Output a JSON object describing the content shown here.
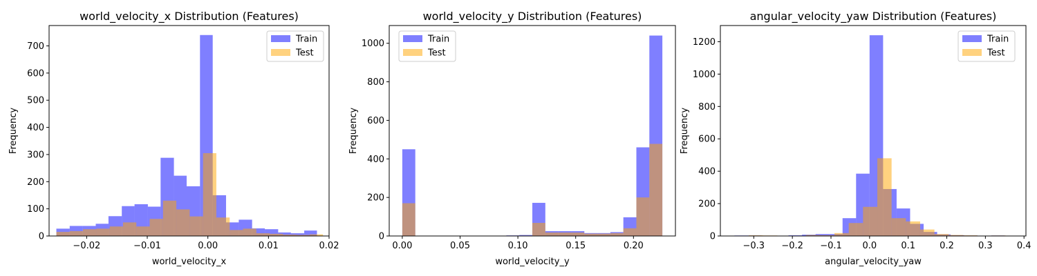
{
  "chart_data": [
    {
      "type": "histogram",
      "title": "world_velocity_x Distribution (Features)",
      "xlabel": "world_velocity_x",
      "ylabel": "Frequency",
      "xlim": [
        -0.0262,
        0.02
      ],
      "ylim": [
        0,
        775
      ],
      "xticks": [
        -0.02,
        -0.01,
        0.0,
        0.01,
        0.02
      ],
      "xtick_labels": [
        "−0.02",
        "−0.01",
        "0.00",
        "0.01",
        "0.02"
      ],
      "yticks": [
        0,
        100,
        200,
        300,
        400,
        500,
        600,
        700
      ],
      "yticks_labels": [
        "0",
        "100",
        "200",
        "300",
        "400",
        "500",
        "600",
        "700"
      ],
      "legend": "top-right",
      "series": [
        {
          "name": "Train",
          "color": "#0000ff",
          "alpha": 0.5,
          "bin_edges": [
            -0.025,
            -0.0228,
            -0.0207,
            -0.0185,
            -0.0164,
            -0.0142,
            -0.0121,
            -0.0099,
            -0.0078,
            -0.0056,
            -0.0035,
            -0.0013,
            0.0008,
            0.003,
            0.0051,
            0.0073,
            0.0094,
            0.0116,
            0.0137,
            0.0159,
            0.018
          ],
          "counts": [
            27,
            37,
            37,
            45,
            73,
            110,
            117,
            108,
            288,
            222,
            183,
            740,
            150,
            50,
            60,
            28,
            25,
            13,
            10,
            20
          ]
        },
        {
          "name": "Test",
          "color": "#ffa500",
          "alpha": 0.5,
          "bin_edges": [
            -0.025,
            -0.0228,
            -0.0206,
            -0.0184,
            -0.0162,
            -0.014,
            -0.0118,
            -0.0096,
            -0.0074,
            -0.0052,
            -0.003,
            -0.0008,
            0.0014,
            0.0036,
            0.0058,
            0.008,
            0.0102,
            0.0124,
            0.0146,
            0.0168,
            0.019
          ],
          "counts": [
            15,
            18,
            25,
            27,
            35,
            50,
            35,
            63,
            130,
            98,
            72,
            305,
            68,
            22,
            27,
            10,
            8,
            5,
            4,
            6
          ]
        }
      ]
    },
    {
      "type": "histogram",
      "title": "world_velocity_y Distribution (Features)",
      "xlabel": "world_velocity_y",
      "ylabel": "Frequency",
      "xlim": [
        -0.0113,
        0.2363
      ],
      "ylim": [
        0,
        1092
      ],
      "xticks": [
        0.0,
        0.05,
        0.1,
        0.15,
        0.2
      ],
      "xtick_labels": [
        "0.00",
        "0.05",
        "0.10",
        "0.15",
        "0.20"
      ],
      "yticks": [
        0,
        200,
        400,
        600,
        800,
        1000
      ],
      "yticks_labels": [
        "0",
        "200",
        "400",
        "600",
        "800",
        "1000"
      ],
      "legend": "top-left",
      "series": [
        {
          "name": "Train",
          "color": "#0000ff",
          "alpha": 0.5,
          "bin_edges": [
            0.0,
            0.01125,
            0.0225,
            0.03375,
            0.045,
            0.05625,
            0.0675,
            0.07875,
            0.09,
            0.10125,
            0.1125,
            0.12375,
            0.135,
            0.14625,
            0.1575,
            0.16875,
            0.18,
            0.19125,
            0.2025,
            0.21375,
            0.225
          ],
          "counts": [
            450,
            0,
            0,
            0,
            0,
            0,
            0,
            0,
            3,
            5,
            172,
            25,
            25,
            25,
            15,
            15,
            20,
            97,
            460,
            1040
          ]
        },
        {
          "name": "Test",
          "color": "#ffa500",
          "alpha": 0.5,
          "bin_edges": [
            0.0,
            0.01125,
            0.0225,
            0.03375,
            0.045,
            0.05625,
            0.0675,
            0.07875,
            0.09,
            0.10125,
            0.1125,
            0.12375,
            0.135,
            0.14625,
            0.1575,
            0.16875,
            0.18,
            0.19125,
            0.2025,
            0.21375,
            0.225
          ],
          "counts": [
            170,
            0,
            0,
            0,
            0,
            0,
            0,
            0,
            2,
            2,
            68,
            18,
            18,
            18,
            12,
            12,
            15,
            40,
            200,
            478
          ]
        }
      ]
    },
    {
      "type": "histogram",
      "title": "angular_velocity_yaw Distribution (Features)",
      "xlabel": "angular_velocity_yaw",
      "ylabel": "Frequency",
      "xlim": [
        -0.3865,
        0.405
      ],
      "ylim": [
        0,
        1300
      ],
      "xticks": [
        -0.3,
        -0.2,
        -0.1,
        0.0,
        0.1,
        0.2,
        0.3,
        0.4
      ],
      "xtick_labels": [
        "−0.3",
        "−0.2",
        "−0.1",
        "0.0",
        "0.1",
        "0.2",
        "0.3",
        "0.4"
      ],
      "yticks": [
        0,
        200,
        400,
        600,
        800,
        1000,
        1200
      ],
      "yticks_labels": [
        "0",
        "200",
        "400",
        "600",
        "800",
        "1000",
        "1200"
      ],
      "legend": "top-right",
      "series": [
        {
          "name": "Train",
          "color": "#0000ff",
          "alpha": 0.5,
          "bin_edges": [
            -0.35,
            -0.315,
            -0.28,
            -0.245,
            -0.21,
            -0.175,
            -0.14,
            -0.105,
            -0.07,
            -0.035,
            0.0,
            0.035,
            0.07,
            0.105,
            0.14,
            0.175,
            0.21,
            0.245,
            0.28,
            0.315,
            0.35
          ],
          "counts": [
            3,
            3,
            2,
            2,
            4,
            8,
            12,
            12,
            110,
            385,
            1240,
            290,
            170,
            75,
            25,
            10,
            5,
            3,
            2,
            3
          ]
        },
        {
          "name": "Test",
          "color": "#ffa500",
          "alpha": 0.5,
          "bin_edges": [
            -0.35,
            -0.313,
            -0.276,
            -0.239,
            -0.202,
            -0.165,
            -0.128,
            -0.091,
            -0.054,
            -0.017,
            0.02,
            0.057,
            0.094,
            0.131,
            0.168,
            0.205,
            0.242,
            0.279,
            0.316,
            0.353,
            0.39
          ],
          "counts": [
            2,
            4,
            3,
            2,
            2,
            6,
            5,
            18,
            80,
            180,
            480,
            110,
            90,
            40,
            12,
            6,
            4,
            2,
            3,
            2
          ]
        }
      ]
    }
  ]
}
